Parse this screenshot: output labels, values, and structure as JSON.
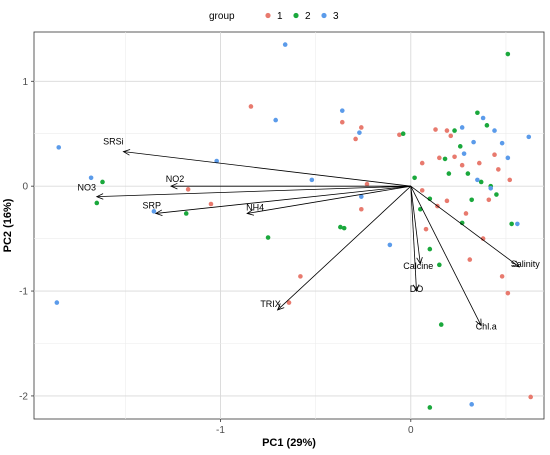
{
  "chart_data": {
    "type": "scatter",
    "title": "",
    "xlabel": "PC1 (29%)",
    "ylabel": "PC2 (16%)",
    "xlim": [
      -1.98,
      0.7
    ],
    "ylim": [
      -2.22,
      1.47
    ],
    "xticks": [
      -1,
      0
    ],
    "yticks": [
      -2,
      -1,
      0,
      1
    ],
    "grid": true,
    "legend": {
      "title": "group",
      "placement": "top",
      "entries": [
        "1",
        "2",
        "3"
      ]
    },
    "colors": {
      "1": "#e87a6e",
      "2": "#1aa83c",
      "3": "#5b9bea"
    },
    "origin": [
      0,
      0
    ],
    "vectors": [
      {
        "label": "SRSi",
        "x": -1.51,
        "y": 0.33
      },
      {
        "label": "NO2",
        "x": -1.26,
        "y": 0.0
      },
      {
        "label": "NO3",
        "x": -1.65,
        "y": -0.1
      },
      {
        "label": "SRP",
        "x": -1.34,
        "y": -0.26
      },
      {
        "label": "NH4",
        "x": -0.86,
        "y": -0.26
      },
      {
        "label": "TRIX",
        "x": -0.7,
        "y": -1.18
      },
      {
        "label": "Calcine",
        "x": 0.05,
        "y": -0.74
      },
      {
        "label": "DO",
        "x": 0.03,
        "y": -1.0
      },
      {
        "label": "Chl.a",
        "x": 0.37,
        "y": -1.33
      },
      {
        "label": "Salinity",
        "x": 0.57,
        "y": -0.77
      }
    ],
    "series": [
      {
        "name": "1",
        "points": [
          [
            -0.84,
            0.76
          ],
          [
            -0.36,
            0.61
          ],
          [
            -0.26,
            0.56
          ],
          [
            -0.29,
            0.45
          ],
          [
            -0.06,
            0.49
          ],
          [
            0.06,
            0.22
          ],
          [
            -0.23,
            0.02
          ],
          [
            -1.17,
            -0.03
          ],
          [
            -1.05,
            -0.17
          ],
          [
            -0.26,
            -0.22
          ],
          [
            -0.58,
            -0.86
          ],
          [
            -0.64,
            -1.11
          ],
          [
            0.13,
            0.54
          ],
          [
            0.19,
            0.53
          ],
          [
            0.21,
            0.48
          ],
          [
            0.15,
            0.27
          ],
          [
            0.23,
            0.28
          ],
          [
            0.27,
            0.2
          ],
          [
            0.36,
            0.22
          ],
          [
            0.44,
            0.3
          ],
          [
            0.46,
            0.16
          ],
          [
            0.52,
            0.06
          ],
          [
            0.29,
            -0.26
          ],
          [
            0.41,
            -0.13
          ],
          [
            0.08,
            -0.41
          ],
          [
            0.14,
            -0.19
          ],
          [
            0.19,
            -0.14
          ],
          [
            0.06,
            -0.04
          ],
          [
            0.38,
            -0.5
          ],
          [
            0.31,
            -0.7
          ],
          [
            0.48,
            -0.86
          ],
          [
            0.51,
            -1.02
          ],
          [
            0.63,
            -2.01
          ]
        ]
      },
      {
        "name": "2",
        "points": [
          [
            -1.62,
            0.04
          ],
          [
            -1.65,
            -0.16
          ],
          [
            -1.18,
            -0.26
          ],
          [
            -0.75,
            -0.49
          ],
          [
            -0.37,
            -0.39
          ],
          [
            -0.35,
            -0.4
          ],
          [
            -0.04,
            0.5
          ],
          [
            0.02,
            0.08
          ],
          [
            0.1,
            -0.12
          ],
          [
            0.05,
            -0.22
          ],
          [
            0.1,
            -0.6
          ],
          [
            0.1,
            -2.11
          ],
          [
            0.35,
            0.7
          ],
          [
            0.4,
            0.58
          ],
          [
            0.23,
            0.53
          ],
          [
            0.18,
            0.26
          ],
          [
            0.3,
            0.12
          ],
          [
            0.37,
            0.04
          ],
          [
            0.42,
            0.0
          ],
          [
            0.45,
            -0.08
          ],
          [
            0.32,
            -0.13
          ],
          [
            0.27,
            -0.35
          ],
          [
            0.51,
            1.26
          ],
          [
            0.53,
            -0.36
          ],
          [
            0.15,
            -0.75
          ],
          [
            0.16,
            -1.32
          ],
          [
            0.2,
            0.12
          ],
          [
            0.26,
            0.38
          ]
        ]
      },
      {
        "name": "3",
        "points": [
          [
            -1.85,
            0.37
          ],
          [
            -1.68,
            0.08
          ],
          [
            -1.35,
            -0.24
          ],
          [
            -1.02,
            0.24
          ],
          [
            -0.71,
            0.63
          ],
          [
            -0.66,
            1.35
          ],
          [
            -0.36,
            0.72
          ],
          [
            -0.27,
            0.51
          ],
          [
            -0.52,
            0.06
          ],
          [
            -0.26,
            -0.1
          ],
          [
            -0.11,
            -0.56
          ],
          [
            -1.86,
            -1.11
          ],
          [
            0.27,
            0.56
          ],
          [
            0.33,
            0.42
          ],
          [
            0.38,
            0.65
          ],
          [
            0.44,
            0.53
          ],
          [
            0.48,
            0.41
          ],
          [
            0.62,
            0.47
          ],
          [
            0.35,
            0.06
          ],
          [
            0.42,
            -0.02
          ],
          [
            0.51,
            0.27
          ],
          [
            0.56,
            -0.36
          ],
          [
            0.32,
            -2.08
          ],
          [
            0.28,
            0.31
          ]
        ]
      }
    ]
  }
}
